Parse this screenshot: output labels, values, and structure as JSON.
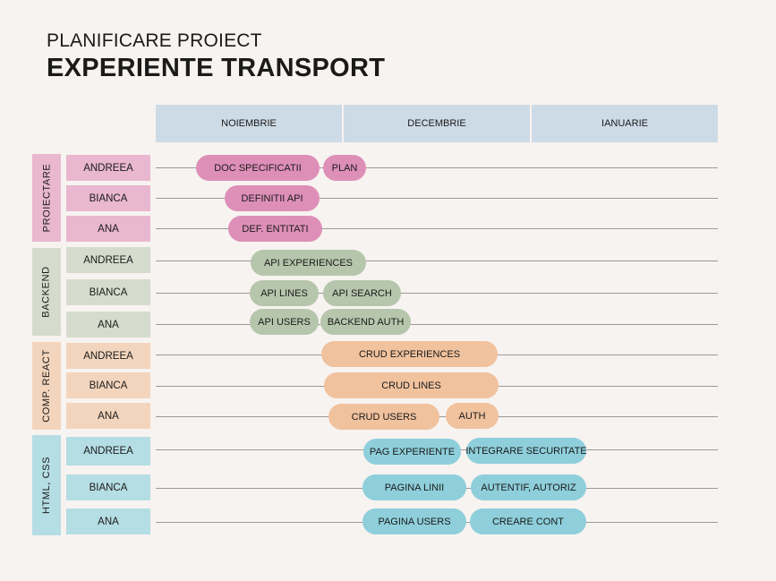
{
  "title": {
    "line1": "PLANIFICARE PROIECT",
    "line2": "EXPERIENTE TRANSPORT"
  },
  "months": [
    "NOIEMBRIE",
    "DECEMBRIE",
    "IANUARIE"
  ],
  "groups": [
    {
      "label": "PROIECTARE",
      "color": "#e9b7cf",
      "rows": [
        {
          "name": "ANDREEA",
          "tasks": [
            "DOC SPECIFICATII",
            "PLAN"
          ]
        },
        {
          "name": "BIANCA",
          "tasks": [
            "DEFINITII API"
          ]
        },
        {
          "name": "ANA",
          "tasks": [
            "DEF. ENTITATI"
          ]
        }
      ]
    },
    {
      "label": "BACKEND",
      "color": "#d5dccd",
      "rows": [
        {
          "name": "ANDREEA",
          "tasks": [
            "API EXPERIENCES"
          ]
        },
        {
          "name": "BIANCA",
          "tasks": [
            "API LINES",
            "API SEARCH"
          ]
        },
        {
          "name": "ANA",
          "tasks": [
            "API USERS",
            "BACKEND AUTH"
          ]
        }
      ]
    },
    {
      "label": "COMP. REACT",
      "color": "#f3d5bd",
      "rows": [
        {
          "name": "ANDREEA",
          "tasks": [
            "CRUD EXPERIENCES"
          ]
        },
        {
          "name": "BIANCA",
          "tasks": [
            "CRUD LINES"
          ]
        },
        {
          "name": "ANA",
          "tasks": [
            "CRUD USERS",
            "AUTH"
          ]
        }
      ]
    },
    {
      "label": "HTML, CSS",
      "color": "#b5dde4",
      "rows": [
        {
          "name": "ANDREEA",
          "tasks": [
            "PAG EXPERIENTE",
            "INTEGRARE SECURITATE"
          ]
        },
        {
          "name": "BIANCA",
          "tasks": [
            "PAGINA LINII",
            "AUTENTIF, AUTORIZ"
          ]
        },
        {
          "name": "ANA",
          "tasks": [
            "PAGINA USERS",
            "CREARE CONT"
          ]
        }
      ]
    }
  ]
}
